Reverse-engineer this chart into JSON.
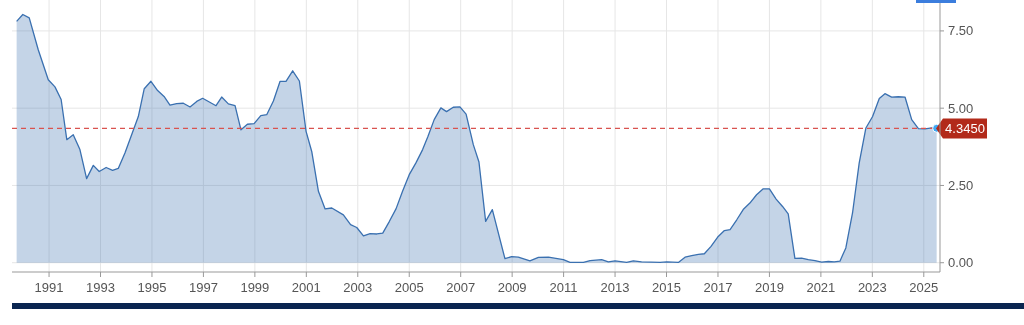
{
  "chart_data": {
    "type": "area",
    "x": [
      1989.74,
      1989.98,
      1990.23,
      1990.58,
      1990.97,
      1991.23,
      1991.47,
      1991.69,
      1991.94,
      1992.2,
      1992.46,
      1992.72,
      1992.95,
      1993.22,
      1993.47,
      1993.69,
      1993.95,
      1994.21,
      1994.47,
      1994.7,
      1994.96,
      1995.22,
      1995.47,
      1995.7,
      1995.96,
      1996.22,
      1996.48,
      1996.74,
      1996.97,
      1997.23,
      1997.49,
      1997.71,
      1997.97,
      1998.23,
      1998.46,
      1998.71,
      1998.97,
      1999.23,
      1999.46,
      1999.72,
      1999.98,
      2000.21,
      2000.47,
      2000.73,
      2000.99,
      2001.21,
      2001.47,
      2001.73,
      2001.99,
      2002.44,
      2002.72,
      2002.96,
      2003.22,
      2003.48,
      2003.74,
      2003.97,
      2004.23,
      2004.49,
      2004.74,
      2005.0,
      2005.26,
      2005.52,
      2005.73,
      2005.97,
      2006.23,
      2006.45,
      2006.71,
      2006.97,
      2007.21,
      2007.49,
      2007.71,
      2007.97,
      2008.23,
      2008.72,
      2008.98,
      2009.24,
      2009.69,
      2010.02,
      2010.41,
      2010.99,
      2011.25,
      2011.77,
      2012.03,
      2012.48,
      2012.74,
      2013.0,
      2013.45,
      2013.71,
      2014.03,
      2014.75,
      2015.01,
      2015.46,
      2015.72,
      2015.98,
      2016.24,
      2016.47,
      2016.73,
      2016.99,
      2017.25,
      2017.47,
      2017.73,
      2017.98,
      2018.24,
      2018.5,
      2018.76,
      2019.0,
      2019.26,
      2019.51,
      2019.73,
      2019.99,
      2020.25,
      2020.51,
      2020.77,
      2021.03,
      2021.29,
      2021.52,
      2021.74,
      2021.97,
      2022.23,
      2022.49,
      2022.75,
      2023.01,
      2023.27,
      2023.49,
      2023.75,
      2024.01,
      2024.27,
      2024.53,
      2024.79,
      2025.05,
      2025.31,
      2025.5
    ],
    "series": [
      {
        "color": "#3a70b0",
        "values": [
          7.81,
          8.03,
          7.92,
          6.89,
          5.92,
          5.69,
          5.28,
          3.98,
          4.14,
          3.66,
          2.72,
          3.15,
          2.95,
          3.08,
          2.99,
          3.05,
          3.55,
          4.14,
          4.73,
          5.63,
          5.87,
          5.57,
          5.38,
          5.1,
          5.15,
          5.16,
          5.04,
          5.22,
          5.32,
          5.2,
          5.08,
          5.36,
          5.14,
          5.08,
          4.3,
          4.48,
          4.5,
          4.76,
          4.79,
          5.23,
          5.87,
          5.87,
          6.21,
          5.88,
          4.25,
          3.6,
          2.31,
          1.74,
          1.77,
          1.55,
          1.23,
          1.14,
          0.87,
          0.94,
          0.93,
          0.96,
          1.34,
          1.75,
          2.31,
          2.85,
          3.23,
          3.66,
          4.09,
          4.63,
          5.01,
          4.89,
          5.03,
          5.04,
          4.81,
          3.82,
          3.26,
          1.34,
          1.72,
          0.13,
          0.2,
          0.18,
          0.06,
          0.17,
          0.18,
          0.1,
          0.01,
          0.01,
          0.07,
          0.1,
          0.03,
          0.06,
          0.01,
          0.06,
          0.03,
          0.01,
          0.03,
          0.01,
          0.18,
          0.23,
          0.27,
          0.29,
          0.53,
          0.83,
          1.04,
          1.07,
          1.39,
          1.72,
          1.93,
          2.2,
          2.39,
          2.39,
          2.06,
          1.82,
          1.58,
          0.14,
          0.15,
          0.1,
          0.07,
          0.02,
          0.04,
          0.03,
          0.05,
          0.48,
          1.61,
          3.23,
          4.36,
          4.73,
          5.31,
          5.47,
          5.36,
          5.37,
          5.36,
          4.63,
          4.34,
          4.33,
          4.36,
          4.35
        ]
      }
    ],
    "xlim": [
      1989.56,
      2025.63
    ],
    "xticks": [
      1991,
      1993,
      1995,
      1997,
      1999,
      2001,
      2003,
      2005,
      2007,
      2009,
      2011,
      2013,
      2015,
      2017,
      2019,
      2021,
      2023,
      2025
    ],
    "ylim": [
      -0.3,
      8.5
    ],
    "yticks": [
      {
        "value": 0,
        "label": "0.00"
      },
      {
        "value": 2.5,
        "label": "2.50"
      },
      {
        "value": 5,
        "label": "5.00"
      },
      {
        "value": 7.5,
        "label": "7.50"
      }
    ],
    "grid": true,
    "marker": "none",
    "line_style": "solid",
    "ref_lines": [
      {
        "axis": "y",
        "value": 4.345,
        "label": "4.3450",
        "color": "#d9534f",
        "line_style": "dashed"
      }
    ]
  }
}
